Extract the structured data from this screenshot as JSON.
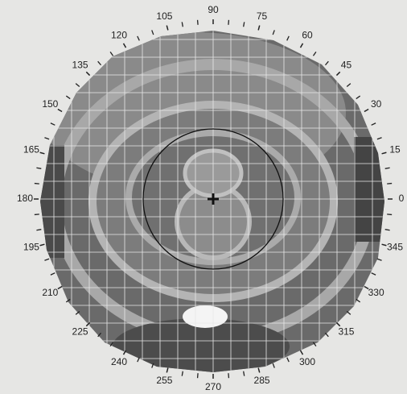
{
  "chart_data": {
    "type": "polar",
    "angle_ticks": [
      0,
      15,
      30,
      45,
      60,
      75,
      90,
      105,
      120,
      135,
      150,
      165,
      180,
      195,
      210,
      225,
      240,
      255,
      270,
      285,
      300,
      315,
      330,
      345
    ],
    "grid": true
  }
}
